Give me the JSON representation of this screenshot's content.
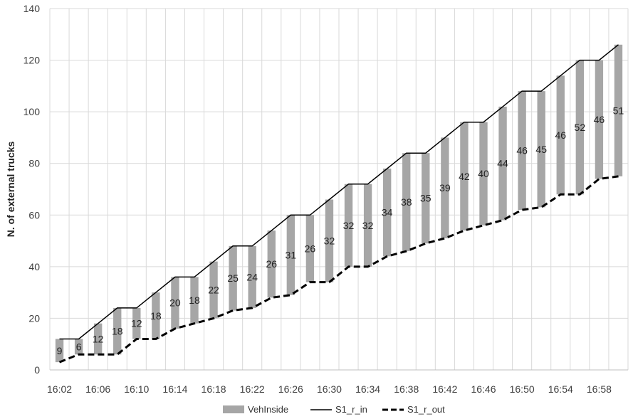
{
  "chart_data": {
    "type": "bar",
    "ylabel": "N. of external trucks",
    "xlabel": "",
    "ylim": [
      0,
      140
    ],
    "yticks": [
      0,
      20,
      40,
      60,
      80,
      100,
      120,
      140
    ],
    "grid": true,
    "legend_position": "bottom",
    "x_tick_labels": [
      "16:02",
      "16:06",
      "16:10",
      "16:14",
      "16:18",
      "16:22",
      "16:26",
      "16:30",
      "16:34",
      "16:38",
      "16:42",
      "16:46",
      "16:50",
      "16:54",
      "16:58"
    ],
    "x": [
      "16:02",
      "16:04",
      "16:06",
      "16:08",
      "16:10",
      "16:12",
      "16:14",
      "16:16",
      "16:18",
      "16:20",
      "16:22",
      "16:24",
      "16:26",
      "16:28",
      "16:30",
      "16:32",
      "16:34",
      "16:36",
      "16:38",
      "16:40",
      "16:42",
      "16:44",
      "16:46",
      "16:48",
      "16:50",
      "16:52",
      "16:54",
      "16:56",
      "16:58",
      "17:00"
    ],
    "series": [
      {
        "name": "VehInside",
        "kind": "floating-bar",
        "color": "#a6a6a6",
        "values": [
          9,
          6,
          12,
          18,
          12,
          18,
          20,
          18,
          22,
          25,
          24,
          26,
          31,
          26,
          32,
          32,
          32,
          34,
          38,
          35,
          39,
          42,
          40,
          44,
          46,
          45,
          46,
          52,
          46,
          51
        ]
      },
      {
        "name": "S1_r_in",
        "kind": "line-solid",
        "color": "#000000",
        "values": [
          12,
          12,
          18,
          24,
          24,
          30,
          36,
          36,
          42,
          48,
          48,
          54,
          60,
          60,
          66,
          72,
          72,
          78,
          84,
          84,
          90,
          96,
          96,
          102,
          108,
          108,
          114,
          120,
          120,
          126
        ]
      },
      {
        "name": "S1_r_out",
        "kind": "line-dashed",
        "color": "#000000",
        "values": [
          3,
          6,
          6,
          6,
          12,
          12,
          16,
          18,
          20,
          23,
          24,
          28,
          29,
          34,
          34,
          40,
          40,
          44,
          46,
          49,
          51,
          54,
          56,
          58,
          62,
          63,
          68,
          68,
          74,
          75
        ]
      }
    ]
  }
}
